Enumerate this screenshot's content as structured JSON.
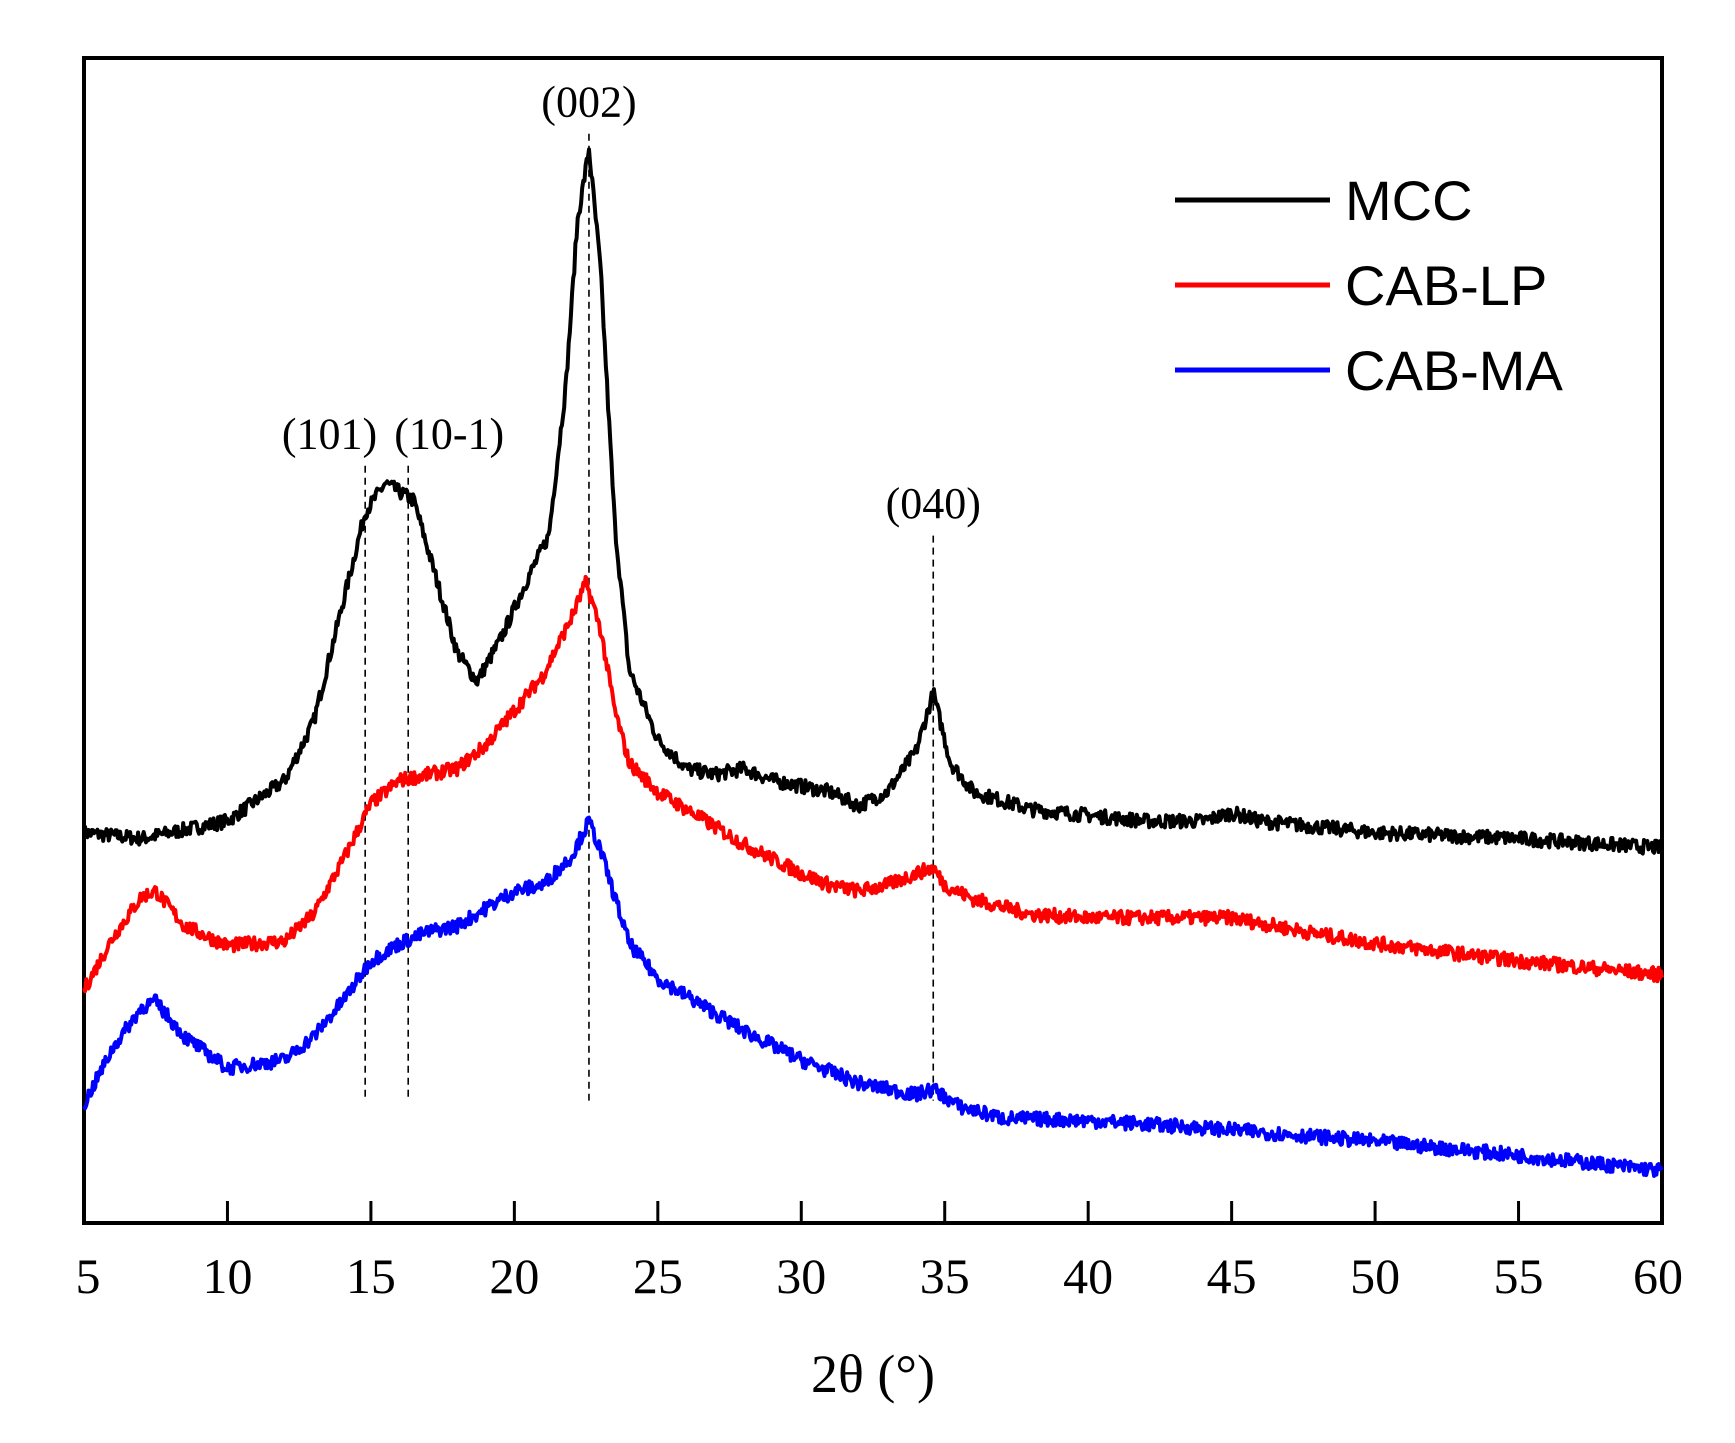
{
  "chart_data": {
    "type": "line",
    "title": "",
    "xlabel": "2θ (°)",
    "ylabel": "",
    "xlim": [
      5,
      60
    ],
    "xticks": [
      5,
      10,
      15,
      20,
      25,
      30,
      35,
      40,
      45,
      50,
      55,
      60
    ],
    "y_ticks_shown": false,
    "grid": false,
    "legend_position": "top-right",
    "series": [
      {
        "name": "MCC",
        "color": "#000000",
        "points": [
          [
            5,
            0.335
          ],
          [
            7,
            0.33
          ],
          [
            10,
            0.345
          ],
          [
            12,
            0.38
          ],
          [
            13,
            0.43
          ],
          [
            14,
            0.53
          ],
          [
            14.8,
            0.61
          ],
          [
            15.5,
            0.635
          ],
          [
            16.5,
            0.62
          ],
          [
            17.2,
            0.56
          ],
          [
            18,
            0.49
          ],
          [
            18.7,
            0.465
          ],
          [
            19.5,
            0.5
          ],
          [
            20.5,
            0.555
          ],
          [
            21.2,
            0.59
          ],
          [
            21.8,
            0.72
          ],
          [
            22.2,
            0.86
          ],
          [
            22.6,
            0.922
          ],
          [
            23,
            0.82
          ],
          [
            23.5,
            0.6
          ],
          [
            24,
            0.475
          ],
          [
            25,
            0.415
          ],
          [
            26,
            0.39
          ],
          [
            27,
            0.385
          ],
          [
            28,
            0.39
          ],
          [
            29,
            0.38
          ],
          [
            30,
            0.375
          ],
          [
            31,
            0.37
          ],
          [
            32,
            0.358
          ],
          [
            33,
            0.37
          ],
          [
            34,
            0.405
          ],
          [
            34.6,
            0.455
          ],
          [
            35.2,
            0.395
          ],
          [
            36,
            0.37
          ],
          [
            38,
            0.355
          ],
          [
            40,
            0.35
          ],
          [
            42,
            0.345
          ],
          [
            44,
            0.345
          ],
          [
            45,
            0.352
          ],
          [
            46,
            0.345
          ],
          [
            48,
            0.34
          ],
          [
            50,
            0.335
          ],
          [
            55,
            0.33
          ],
          [
            60,
            0.322
          ]
        ]
      },
      {
        "name": "CAB-LP",
        "color": "#ff0000",
        "points": [
          [
            5,
            0.2
          ],
          [
            6,
            0.245
          ],
          [
            7,
            0.28
          ],
          [
            7.5,
            0.285
          ],
          [
            8.5,
            0.255
          ],
          [
            10,
            0.238
          ],
          [
            12,
            0.242
          ],
          [
            13,
            0.265
          ],
          [
            14,
            0.31
          ],
          [
            15,
            0.36
          ],
          [
            16,
            0.38
          ],
          [
            17,
            0.385
          ],
          [
            18,
            0.39
          ],
          [
            19,
            0.41
          ],
          [
            20,
            0.44
          ],
          [
            21,
            0.47
          ],
          [
            22,
            0.52
          ],
          [
            22.5,
            0.55
          ],
          [
            23,
            0.51
          ],
          [
            23.5,
            0.44
          ],
          [
            24,
            0.395
          ],
          [
            25,
            0.37
          ],
          [
            26,
            0.355
          ],
          [
            28,
            0.325
          ],
          [
            30,
            0.3
          ],
          [
            31,
            0.29
          ],
          [
            32,
            0.285
          ],
          [
            33,
            0.29
          ],
          [
            34,
            0.3
          ],
          [
            34.6,
            0.305
          ],
          [
            35,
            0.29
          ],
          [
            36,
            0.278
          ],
          [
            38,
            0.265
          ],
          [
            40,
            0.262
          ],
          [
            43,
            0.262
          ],
          [
            45,
            0.262
          ],
          [
            48,
            0.248
          ],
          [
            50,
            0.24
          ],
          [
            55,
            0.225
          ],
          [
            60,
            0.213
          ]
        ]
      },
      {
        "name": "CAB-MA",
        "color": "#0000ff",
        "points": [
          [
            5,
            0.102
          ],
          [
            6,
            0.15
          ],
          [
            7,
            0.185
          ],
          [
            7.5,
            0.19
          ],
          [
            8.5,
            0.16
          ],
          [
            10,
            0.133
          ],
          [
            12,
            0.14
          ],
          [
            13,
            0.16
          ],
          [
            14,
            0.19
          ],
          [
            15,
            0.225
          ],
          [
            16,
            0.24
          ],
          [
            17,
            0.25
          ],
          [
            18,
            0.255
          ],
          [
            19,
            0.27
          ],
          [
            20,
            0.285
          ],
          [
            21,
            0.29
          ],
          [
            22,
            0.315
          ],
          [
            22.6,
            0.345
          ],
          [
            23,
            0.32
          ],
          [
            24,
            0.24
          ],
          [
            25,
            0.21
          ],
          [
            26,
            0.195
          ],
          [
            28,
            0.165
          ],
          [
            30,
            0.14
          ],
          [
            32,
            0.12
          ],
          [
            34,
            0.11
          ],
          [
            34.6,
            0.115
          ],
          [
            35.5,
            0.1
          ],
          [
            37,
            0.09
          ],
          [
            40,
            0.088
          ],
          [
            45,
            0.08
          ],
          [
            50,
            0.07
          ],
          [
            55,
            0.058
          ],
          [
            60,
            0.045
          ]
        ]
      }
    ],
    "reference_lines": [
      {
        "x": 14.8,
        "label": "(101)"
      },
      {
        "x": 16.3,
        "label": "(10-1)"
      },
      {
        "x": 22.6,
        "label": "(002)"
      },
      {
        "x": 34.6,
        "label": "(040)"
      }
    ]
  }
}
